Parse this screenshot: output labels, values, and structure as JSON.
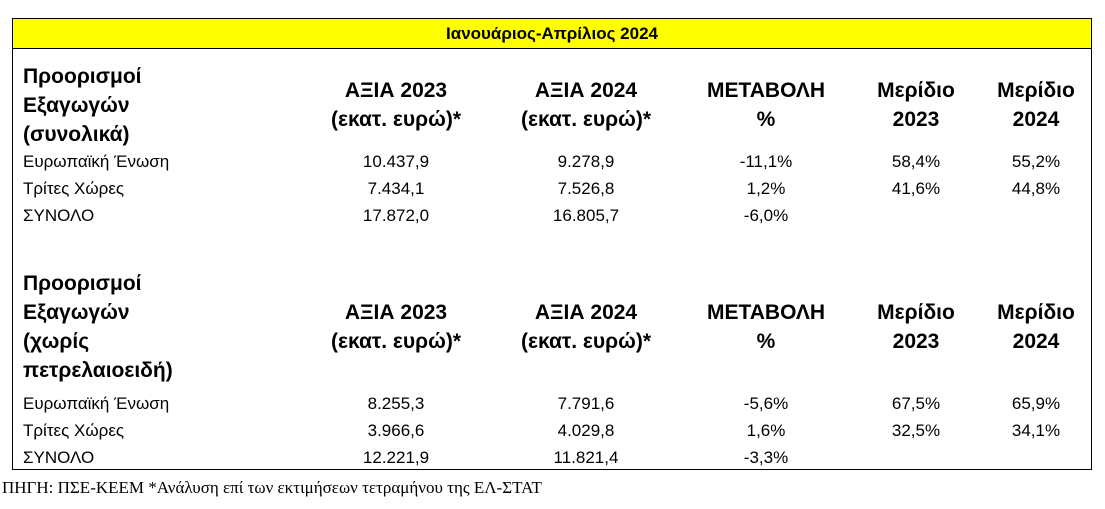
{
  "title": "Ιανουάριος-Απρίλιος 2024",
  "sections": [
    {
      "header": [
        [
          "Προορισμοί",
          "Εξαγωγών",
          "(συνολικά)"
        ],
        [
          "ΑΞΙΑ 2023",
          "(εκατ. ευρώ)*"
        ],
        [
          "ΑΞΙΑ 2024",
          "(εκατ. ευρώ)*"
        ],
        [
          "ΜΕΤΑΒΟΛΗ",
          "%"
        ],
        [
          "Μερίδιο",
          "2023"
        ],
        [
          "Μερίδιο",
          "2024"
        ]
      ],
      "rows": [
        [
          "Ευρωπαϊκή Ένωση",
          "10.437,9",
          "9.278,9",
          "-11,1%",
          "58,4%",
          "55,2%"
        ],
        [
          "Τρίτες Χώρες",
          "7.434,1",
          "7.526,8",
          "1,2%",
          "41,6%",
          "44,8%"
        ],
        [
          "ΣΥΝΟΛΟ",
          "17.872,0",
          "16.805,7",
          "-6,0%"
        ]
      ]
    },
    {
      "header": [
        [
          "Προορισμοί",
          "Εξαγωγών",
          "(χωρίς",
          "πετρελαιοειδή)"
        ],
        [
          "ΑΞΙΑ 2023",
          "(εκατ. ευρώ)*"
        ],
        [
          "ΑΞΙΑ 2024",
          "(εκατ. ευρώ)*"
        ],
        [
          "ΜΕΤΑΒΟΛΗ",
          "%"
        ],
        [
          "Μερίδιο",
          "2023"
        ],
        [
          "Μερίδιο",
          "2024"
        ]
      ],
      "rows": [
        [
          "Ευρωπαϊκή Ένωση",
          "8.255,3",
          "7.791,6",
          "-5,6%",
          "67,5%",
          "65,9%"
        ],
        [
          "Τρίτες Χώρες",
          "3.966,6",
          "4.029,8",
          "1,6%",
          "32,5%",
          "34,1%"
        ],
        [
          "ΣΥΝΟΛΟ",
          "12.221,9",
          "11.821,4",
          "-3,3%"
        ]
      ]
    }
  ],
  "footer": "ΠΗΓΗ: ΠΣΕ-ΚΕΕΜ *Ανάλυση επί των εκτιμήσεων τετραμήνου της ΕΛ-ΣΤΑΤ"
}
